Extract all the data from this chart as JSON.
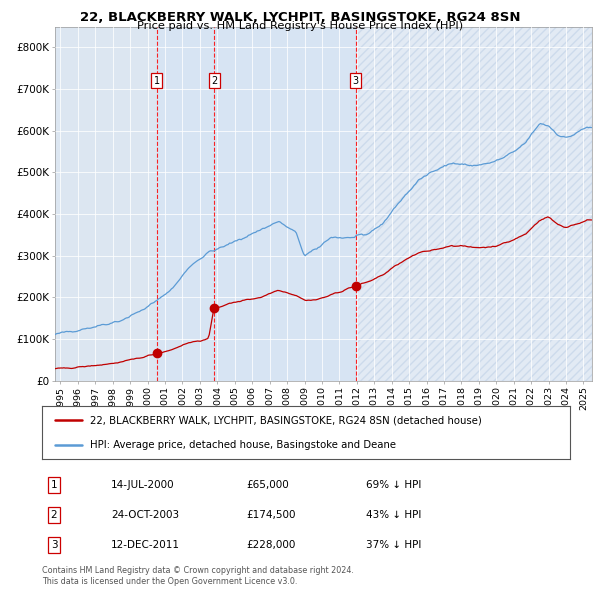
{
  "title1": "22, BLACKBERRY WALK, LYCHPIT, BASINGSTOKE, RG24 8SN",
  "title2": "Price paid vs. HM Land Registry's House Price Index (HPI)",
  "legend_line1": "22, BLACKBERRY WALK, LYCHPIT, BASINGSTOKE, RG24 8SN (detached house)",
  "legend_line2": "HPI: Average price, detached house, Basingstoke and Deane",
  "transactions": [
    {
      "num": 1,
      "date": "14-JUL-2000",
      "date_val": 2000.536,
      "price": 65000,
      "label": "69% ↓ HPI"
    },
    {
      "num": 2,
      "date": "24-OCT-2003",
      "date_val": 2003.815,
      "price": 174500,
      "label": "43% ↓ HPI"
    },
    {
      "num": 3,
      "date": "12-DEC-2011",
      "date_val": 2011.945,
      "price": 228000,
      "label": "37% ↓ HPI"
    }
  ],
  "footnote1": "Contains HM Land Registry data © Crown copyright and database right 2024.",
  "footnote2": "This data is licensed under the Open Government Licence v3.0.",
  "hpi_line_color": "#5b9bd5",
  "price_line_color": "#c00000",
  "chart_bg_color": "#dce6f1",
  "span_shade_color": "#ccdaee",
  "vline_color": "#ff0000",
  "ylim": [
    0,
    850000
  ],
  "xlim_start": 1994.7,
  "xlim_end": 2025.5,
  "yticks": [
    0,
    100000,
    200000,
    300000,
    400000,
    500000,
    600000,
    700000,
    800000
  ],
  "ylabels": [
    "£0",
    "£100K",
    "£200K",
    "£300K",
    "£400K",
    "£500K",
    "£600K",
    "£700K",
    "£800K"
  ],
  "hpi_anchors": [
    [
      1994.7,
      110000
    ],
    [
      1995.5,
      118000
    ],
    [
      1997.0,
      130000
    ],
    [
      1998.5,
      145000
    ],
    [
      1999.5,
      165000
    ],
    [
      2000.5,
      190000
    ],
    [
      2001.5,
      225000
    ],
    [
      2002.5,
      278000
    ],
    [
      2003.5,
      308000
    ],
    [
      2004.3,
      320000
    ],
    [
      2007.5,
      382000
    ],
    [
      2008.5,
      355000
    ],
    [
      2009.0,
      300000
    ],
    [
      2009.7,
      315000
    ],
    [
      2010.5,
      345000
    ],
    [
      2011.5,
      342000
    ],
    [
      2012.5,
      348000
    ],
    [
      2013.5,
      378000
    ],
    [
      2014.5,
      432000
    ],
    [
      2015.5,
      478000
    ],
    [
      2016.5,
      508000
    ],
    [
      2017.5,
      522000
    ],
    [
      2018.5,
      516000
    ],
    [
      2019.5,
      520000
    ],
    [
      2020.3,
      532000
    ],
    [
      2021.0,
      548000
    ],
    [
      2021.7,
      572000
    ],
    [
      2022.5,
      618000
    ],
    [
      2023.0,
      612000
    ],
    [
      2023.5,
      592000
    ],
    [
      2024.0,
      582000
    ],
    [
      2024.5,
      592000
    ],
    [
      2025.2,
      608000
    ]
  ],
  "price_anchors_seg1": [
    [
      1994.7,
      28000
    ],
    [
      1995.5,
      30000
    ],
    [
      1997.0,
      36000
    ],
    [
      1998.5,
      44000
    ],
    [
      1999.5,
      54000
    ],
    [
      2000.536,
      65000
    ]
  ],
  "price_anchors_seg2": [
    [
      2003.815,
      174500
    ],
    [
      2004.5,
      182000
    ],
    [
      2005.5,
      193000
    ],
    [
      2006.5,
      200000
    ],
    [
      2007.5,
      218000
    ],
    [
      2008.5,
      205000
    ],
    [
      2009.0,
      193000
    ],
    [
      2009.7,
      194000
    ],
    [
      2010.5,
      205000
    ],
    [
      2011.945,
      228000
    ]
  ],
  "price_anchors_seg3": [
    [
      2011.945,
      228000
    ],
    [
      2012.5,
      234000
    ],
    [
      2013.5,
      254000
    ],
    [
      2014.5,
      283000
    ],
    [
      2015.5,
      305000
    ],
    [
      2016.5,
      315000
    ],
    [
      2017.5,
      325000
    ],
    [
      2018.5,
      320000
    ],
    [
      2019.5,
      320000
    ],
    [
      2020.3,
      327000
    ],
    [
      2021.0,
      338000
    ],
    [
      2021.7,
      352000
    ],
    [
      2022.5,
      386000
    ],
    [
      2023.0,
      393000
    ],
    [
      2023.5,
      375000
    ],
    [
      2024.0,
      368000
    ],
    [
      2024.5,
      375000
    ],
    [
      2025.2,
      384000
    ]
  ],
  "price_anchors_between1_2": [
    [
      2000.536,
      65000
    ],
    [
      2001.0,
      70000
    ],
    [
      2001.5,
      76000
    ],
    [
      2002.0,
      86000
    ],
    [
      2002.5,
      92000
    ],
    [
      2003.0,
      96000
    ],
    [
      2003.5,
      100000
    ],
    [
      2003.815,
      174500
    ]
  ]
}
